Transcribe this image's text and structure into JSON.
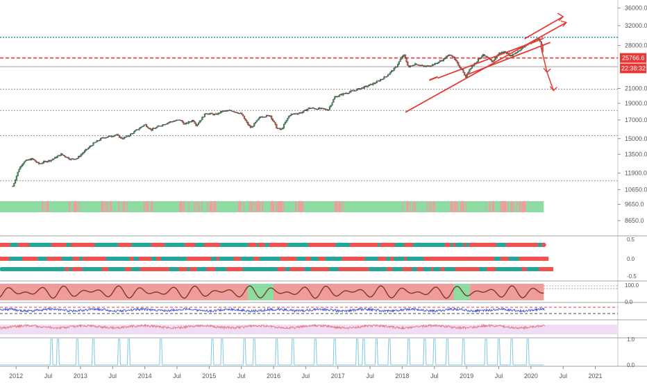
{
  "chart_data": {
    "type": "candlestick",
    "main_panel": {
      "price_axis_ticks": [
        "36000.0",
        "32000.0",
        "28000.0",
        "25766.6",
        "21000.0",
        "19000.0",
        "17000.0",
        "15000.0",
        "13500.0",
        "11900.0",
        "10650.0",
        "9650.0",
        "8650.0"
      ],
      "ylim": [
        8000,
        37500
      ],
      "log_scale": true,
      "current_price_label": "25766.6",
      "countdown_label": "22:38:32",
      "series": [
        {
          "t": 2011.95,
          "v": 10900
        },
        {
          "t": 2012.05,
          "v": 12300
        },
        {
          "t": 2012.12,
          "v": 12850
        },
        {
          "t": 2012.25,
          "v": 13100
        },
        {
          "t": 2012.35,
          "v": 12650
        },
        {
          "t": 2012.45,
          "v": 12850
        },
        {
          "t": 2012.55,
          "v": 13000
        },
        {
          "t": 2012.7,
          "v": 13500
        },
        {
          "t": 2012.85,
          "v": 13050
        },
        {
          "t": 2012.95,
          "v": 13150
        },
        {
          "t": 2013.05,
          "v": 13700
        },
        {
          "t": 2013.2,
          "v": 14500
        },
        {
          "t": 2013.35,
          "v": 15100
        },
        {
          "t": 2013.45,
          "v": 15200
        },
        {
          "t": 2013.55,
          "v": 15400
        },
        {
          "t": 2013.65,
          "v": 15000
        },
        {
          "t": 2013.75,
          "v": 15300
        },
        {
          "t": 2013.9,
          "v": 16000
        },
        {
          "t": 2014.0,
          "v": 16500
        },
        {
          "t": 2014.1,
          "v": 15900
        },
        {
          "t": 2014.25,
          "v": 16400
        },
        {
          "t": 2014.4,
          "v": 16800
        },
        {
          "t": 2014.55,
          "v": 17000
        },
        {
          "t": 2014.62,
          "v": 16500
        },
        {
          "t": 2014.75,
          "v": 17000
        },
        {
          "t": 2014.8,
          "v": 16400
        },
        {
          "t": 2014.95,
          "v": 17800
        },
        {
          "t": 2015.1,
          "v": 17600
        },
        {
          "t": 2015.2,
          "v": 18000
        },
        {
          "t": 2015.35,
          "v": 18100
        },
        {
          "t": 2015.5,
          "v": 17700
        },
        {
          "t": 2015.6,
          "v": 16500
        },
        {
          "t": 2015.65,
          "v": 16100
        },
        {
          "t": 2015.8,
          "v": 17400
        },
        {
          "t": 2015.95,
          "v": 17500
        },
        {
          "t": 2016.05,
          "v": 16100
        },
        {
          "t": 2016.12,
          "v": 15900
        },
        {
          "t": 2016.25,
          "v": 17600
        },
        {
          "t": 2016.45,
          "v": 17900
        },
        {
          "t": 2016.55,
          "v": 18400
        },
        {
          "t": 2016.75,
          "v": 18300
        },
        {
          "t": 2016.85,
          "v": 18200
        },
        {
          "t": 2016.95,
          "v": 19800
        },
        {
          "t": 2017.1,
          "v": 20300
        },
        {
          "t": 2017.25,
          "v": 20700
        },
        {
          "t": 2017.45,
          "v": 21300
        },
        {
          "t": 2017.6,
          "v": 21900
        },
        {
          "t": 2017.75,
          "v": 22800
        },
        {
          "t": 2017.9,
          "v": 24200
        },
        {
          "t": 2018.02,
          "v": 26400
        },
        {
          "t": 2018.1,
          "v": 24200
        },
        {
          "t": 2018.2,
          "v": 24800
        },
        {
          "t": 2018.35,
          "v": 24300
        },
        {
          "t": 2018.5,
          "v": 24700
        },
        {
          "t": 2018.65,
          "v": 25600
        },
        {
          "t": 2018.75,
          "v": 26500
        },
        {
          "t": 2018.85,
          "v": 24900
        },
        {
          "t": 2018.95,
          "v": 23500
        },
        {
          "t": 2018.98,
          "v": 22500
        },
        {
          "t": 2019.05,
          "v": 24000
        },
        {
          "t": 2019.25,
          "v": 26300
        },
        {
          "t": 2019.4,
          "v": 25100
        },
        {
          "t": 2019.5,
          "v": 26600
        },
        {
          "t": 2019.6,
          "v": 26900
        },
        {
          "t": 2019.68,
          "v": 26100
        },
        {
          "t": 2019.8,
          "v": 27000
        },
        {
          "t": 2019.95,
          "v": 28300
        },
        {
          "t": 2020.05,
          "v": 28900
        },
        {
          "t": 2020.12,
          "v": 29400
        },
        {
          "t": 2020.16,
          "v": 28300
        },
        {
          "t": 2020.19,
          "v": 25900
        }
      ],
      "trendlines": [
        {
          "from": [
            2018.05,
            17900
          ],
          "to": [
            2020.55,
            32700
          ]
        },
        {
          "from": [
            2018.55,
            22500
          ],
          "to": [
            2020.2,
            29400
          ]
        },
        {
          "from": [
            2019.0,
            23000
          ],
          "to": [
            2020.3,
            28600
          ]
        },
        {
          "from": [
            2019.9,
            29300
          ],
          "to": [
            2020.5,
            34000
          ]
        }
      ],
      "down_arrows": [
        {
          "from": [
            2020.15,
            28000
          ],
          "to": [
            2020.25,
            23400
          ]
        },
        {
          "from": [
            2020.25,
            23400
          ],
          "to": [
            2020.35,
            20700
          ]
        }
      ],
      "horizontal_levels": [
        {
          "value": 29600,
          "style": "dotted",
          "color": "#2196b8"
        },
        {
          "value": 25766.6,
          "style": "dashed",
          "color": "#e53935"
        },
        {
          "value": 24300,
          "style": "solid",
          "color": "#9e9e9e"
        },
        {
          "value": 20900,
          "style": "dotted",
          "color": "#9e9e9e"
        },
        {
          "value": 18100,
          "style": "dotted",
          "color": "#9e9e9e"
        },
        {
          "value": 15300,
          "style": "dotted",
          "color": "#9e9e9e"
        },
        {
          "value": 11300,
          "style": "dotted",
          "color": "#9e9e9e"
        }
      ]
    },
    "subpanels": [
      {
        "name": "",
        "type": "signal-bars",
        "ticks": [
          "0.5",
          "0.0",
          "-0.5"
        ]
      },
      {
        "name": "",
        "type": "oscillator",
        "ticks": [
          "100.0",
          "0.0"
        ]
      },
      {
        "name": "",
        "type": "line",
        "ticks": []
      },
      {
        "name": "",
        "type": "line",
        "ticks": []
      },
      {
        "name": "",
        "type": "spikes",
        "ticks": [
          "1.0",
          "0.0"
        ]
      }
    ],
    "time_axis_ticks": [
      {
        "label": "2012",
        "t": 2012.0
      },
      {
        "label": "Jul",
        "t": 2012.5
      },
      {
        "label": "2013",
        "t": 2013.0
      },
      {
        "label": "Jul",
        "t": 2013.5
      },
      {
        "label": "2014",
        "t": 2014.0
      },
      {
        "label": "Jul",
        "t": 2014.5
      },
      {
        "label": "2015",
        "t": 2015.0
      },
      {
        "label": "Jul",
        "t": 2015.5
      },
      {
        "label": "2016",
        "t": 2016.0
      },
      {
        "label": "Jul",
        "t": 2016.5
      },
      {
        "label": "2017",
        "t": 2017.0
      },
      {
        "label": "Jul",
        "t": 2017.5
      },
      {
        "label": "2018",
        "t": 2018.0
      },
      {
        "label": "Jul",
        "t": 2018.5
      },
      {
        "label": "2019",
        "t": 2019.0
      },
      {
        "label": "Jul",
        "t": 2019.5
      },
      {
        "label": "2020",
        "t": 2020.0
      },
      {
        "label": "Jul",
        "t": 2020.5
      },
      {
        "label": "2021",
        "t": 2021.0
      }
    ],
    "xlim": [
      2011.75,
      2021.35
    ],
    "colors": {
      "up": "#26a69a",
      "down": "#ef5350",
      "trend": "#e53935",
      "teal": "#26a69a",
      "red": "#ef5350",
      "green_light": "#8fdca3",
      "red_light": "#f19c9c",
      "osc_line": "#7b3a1f",
      "blue_line": "#3f51d9",
      "pink_band": "#f1dcf5",
      "spike": "#7ec8e3",
      "axis_text": "#555555",
      "grid": "#d8d8d8"
    }
  }
}
